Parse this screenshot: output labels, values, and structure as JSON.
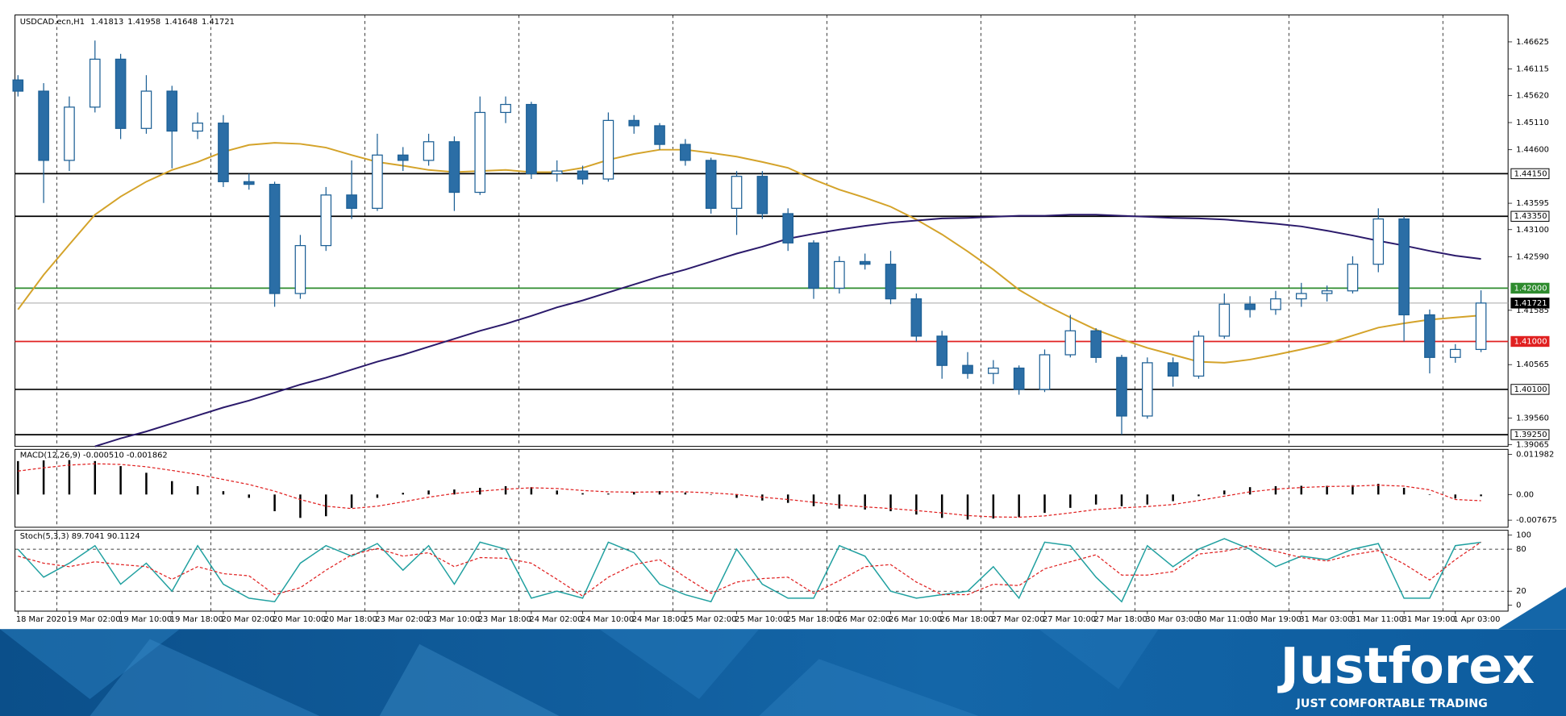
{
  "header": {
    "symbol": "USDCAD.ecn,H1",
    "quote": [
      1.41813,
      1.41958,
      1.41648,
      1.41721
    ]
  },
  "brand": {
    "name": "Justforex",
    "tagline": "JUST COMFORTABLE TRADING"
  },
  "chart_data": [
    {
      "type": "candlestick",
      "categories": [
        "18 Mar 2020",
        null,
        "19 Mar 02:00",
        null,
        "19 Mar 10:00",
        null,
        "19 Mar 18:00",
        null,
        "20 Mar 02:00",
        null,
        "20 Mar 10:00",
        null,
        "20 Mar 18:00",
        null,
        "23 Mar 02:00",
        null,
        "23 Mar 10:00",
        null,
        "23 Mar 18:00",
        null,
        "24 Mar 02:00",
        null,
        "24 Mar 10:00",
        null,
        "24 Mar 18:00",
        null,
        "25 Mar 02:00",
        null,
        "25 Mar 10:00",
        null,
        "25 Mar 18:00",
        null,
        "26 Mar 02:00",
        null,
        "26 Mar 10:00",
        null,
        "26 Mar 18:00",
        null,
        "27 Mar 02:00",
        null,
        "27 Mar 10:00",
        null,
        "27 Mar 18:00",
        null,
        "30 Mar 03:00",
        null,
        "30 Mar 11:00",
        null,
        "30 Mar 19:00",
        null,
        "31 Mar 03:00",
        null,
        "31 Mar 11:00",
        null,
        "31 Mar 19:00",
        null,
        "1 Apr 03:00",
        null
      ],
      "open": [
        1.4591,
        1.457,
        1.444,
        1.454,
        1.463,
        1.45,
        1.457,
        1.4495,
        1.451,
        1.44,
        1.4395,
        1.419,
        1.428,
        1.4375,
        1.435,
        1.445,
        1.444,
        1.4475,
        1.438,
        1.453,
        1.4545,
        1.4415,
        1.442,
        1.4405,
        1.4515,
        1.4505,
        1.447,
        1.444,
        1.435,
        1.441,
        1.434,
        1.4285,
        1.42,
        1.425,
        1.4245,
        1.418,
        1.411,
        1.4055,
        1.404,
        1.405,
        1.401,
        1.4075,
        1.412,
        1.407,
        1.396,
        1.406,
        1.4035,
        1.411,
        1.417,
        1.416,
        1.418,
        1.419,
        1.4195,
        1.4245,
        1.433,
        1.415,
        1.407,
        1.4085
      ],
      "high": [
        1.46,
        1.4585,
        1.456,
        1.4665,
        1.464,
        1.46,
        1.458,
        1.453,
        1.4525,
        1.4415,
        1.44,
        1.43,
        1.439,
        1.444,
        1.449,
        1.4465,
        1.449,
        1.4485,
        1.456,
        1.456,
        1.455,
        1.444,
        1.443,
        1.453,
        1.4525,
        1.451,
        1.448,
        1.4445,
        1.442,
        1.442,
        1.435,
        1.429,
        1.426,
        1.4265,
        1.427,
        1.419,
        1.412,
        1.408,
        1.4065,
        1.4055,
        1.4085,
        1.415,
        1.4125,
        1.4075,
        1.407,
        1.407,
        1.412,
        1.419,
        1.4185,
        1.4195,
        1.421,
        1.4205,
        1.426,
        1.435,
        1.4335,
        1.416,
        1.4095,
        1.4196
      ],
      "low": [
        1.456,
        1.436,
        1.442,
        1.453,
        1.448,
        1.449,
        1.4425,
        1.448,
        1.439,
        1.4385,
        1.4165,
        1.418,
        1.427,
        1.433,
        1.4345,
        1.442,
        1.443,
        1.4345,
        1.4375,
        1.451,
        1.4405,
        1.44,
        1.4395,
        1.44,
        1.449,
        1.446,
        1.443,
        1.434,
        1.43,
        1.433,
        1.427,
        1.418,
        1.419,
        1.4235,
        1.417,
        1.41,
        1.403,
        1.403,
        1.402,
        1.4,
        1.4005,
        1.407,
        1.406,
        1.3925,
        1.3955,
        1.4015,
        1.403,
        1.4105,
        1.4145,
        1.415,
        1.4165,
        1.4175,
        1.419,
        1.423,
        1.41,
        1.404,
        1.406,
        1.408
      ],
      "close": [
        1.457,
        1.444,
        1.454,
        1.463,
        1.45,
        1.457,
        1.4495,
        1.451,
        1.44,
        1.4395,
        1.419,
        1.428,
        1.4375,
        1.435,
        1.445,
        1.444,
        1.4475,
        1.438,
        1.453,
        1.4545,
        1.4415,
        1.442,
        1.4405,
        1.4515,
        1.4505,
        1.447,
        1.444,
        1.435,
        1.441,
        1.434,
        1.4285,
        1.42,
        1.425,
        1.4245,
        1.418,
        1.411,
        1.4055,
        1.404,
        1.405,
        1.401,
        1.4075,
        1.412,
        1.407,
        1.396,
        1.406,
        1.4035,
        1.411,
        1.417,
        1.416,
        1.418,
        1.419,
        1.4195,
        1.4245,
        1.433,
        1.415,
        1.407,
        1.4085,
        1.41721
      ],
      "up_color": "#ffffff",
      "down_color": "#2b6ea6",
      "edge_color": "#1c5f95",
      "lines": [
        {
          "color": "#d4a32a",
          "values": [
            1.416,
            1.4225,
            1.4282,
            1.4338,
            1.4372,
            1.44,
            1.4422,
            1.4437,
            1.4456,
            1.4469,
            1.4473,
            1.4471,
            1.4464,
            1.445,
            1.4437,
            1.443,
            1.4422,
            1.4418,
            1.442,
            1.4422,
            1.4418,
            1.4418,
            1.4426,
            1.4441,
            1.4452,
            1.446,
            1.446,
            1.4454,
            1.4447,
            1.4437,
            1.4426,
            1.4404,
            1.4385,
            1.437,
            1.4353,
            1.4329,
            1.4301,
            1.4269,
            1.4235,
            1.4197,
            1.4169,
            1.4145,
            1.4122,
            1.4104,
            1.4088,
            1.4075,
            1.4062,
            1.406,
            1.4066,
            1.4075,
            1.4085,
            1.4096,
            1.4111,
            1.4126,
            1.4134,
            1.4141,
            1.4145,
            1.4149
          ]
        },
        {
          "color": "#2b1a6b",
          "values": [
            null,
            null,
            null,
            1.3903,
            1.3918,
            1.3931,
            1.3946,
            1.3961,
            1.3976,
            1.3989,
            1.4004,
            1.4019,
            1.4032,
            1.4047,
            1.4062,
            1.4075,
            1.409,
            1.4105,
            1.412,
            1.4133,
            1.4148,
            1.4164,
            1.4177,
            1.4192,
            1.4207,
            1.4222,
            1.4235,
            1.425,
            1.4265,
            1.4278,
            1.4293,
            1.4302,
            1.431,
            1.4317,
            1.4323,
            1.4327,
            1.4331,
            1.4332,
            1.4334,
            1.4336,
            1.4336,
            1.4338,
            1.4338,
            1.4336,
            1.4334,
            1.4332,
            1.4331,
            1.4329,
            1.4325,
            1.4321,
            1.4316,
            1.4308,
            1.4299,
            1.4289,
            1.428,
            1.427,
            1.4261,
            1.4255
          ]
        }
      ],
      "ylim": [
        1.3903,
        1.4713
      ],
      "yticks": [
        {
          "value": 1.46625,
          "label": "1.46625"
        },
        {
          "value": 1.46115,
          "label": "1.46115"
        },
        {
          "value": 1.4562,
          "label": "1.45620"
        },
        {
          "value": 1.4511,
          "label": "1.45110"
        },
        {
          "value": 1.446,
          "label": "1.44600"
        },
        {
          "value": 1.43595,
          "label": "1.43595"
        },
        {
          "value": 1.431,
          "label": "1.43100"
        },
        {
          "value": 1.4259,
          "label": "1.42590"
        },
        {
          "value": 1.41585,
          "label": "1.41585"
        },
        {
          "value": 1.40565,
          "label": "1.40565"
        },
        {
          "value": 1.3956,
          "label": "1.39560"
        },
        {
          "value": 1.39065,
          "label": "1.39065"
        }
      ],
      "levels": [
        {
          "value": 1.4415,
          "label": "1.44150",
          "color": "#000000"
        },
        {
          "value": 1.4335,
          "label": "1.43350",
          "color": "#000000"
        },
        {
          "value": 1.42,
          "label": "1.42000",
          "color": "#2e8b2e"
        },
        {
          "value": 1.41,
          "label": "1.41000",
          "color": "#e02020"
        },
        {
          "value": 1.401,
          "label": "1.40100",
          "color": "#000000"
        },
        {
          "value": 1.3925,
          "label": "1.39250",
          "color": "#000000"
        }
      ],
      "current": {
        "value": 1.41721,
        "color": "#a8a8a8"
      }
    },
    {
      "type": "macd",
      "title": "MACD(12,26,9) -0.000510 -0.001862",
      "values": [
        0.01,
        0.0102,
        0.0103,
        0.01,
        0.0085,
        0.0065,
        0.004,
        0.0025,
        0.001,
        -0.001,
        -0.005,
        -0.007,
        -0.0065,
        -0.004,
        -0.001,
        0.0005,
        0.0012,
        0.0015,
        0.002,
        0.0025,
        0.0022,
        0.0012,
        0.0004,
        0.0003,
        0.0008,
        0.001,
        0.0006,
        0,
        -0.001,
        -0.0018,
        -0.0025,
        -0.0035,
        -0.0042,
        -0.0045,
        -0.005,
        -0.006,
        -0.007,
        -0.0075,
        -0.0072,
        -0.0068,
        -0.0055,
        -0.004,
        -0.003,
        -0.0035,
        -0.003,
        -0.002,
        -0.0005,
        0.0012,
        0.0022,
        0.0025,
        0.0026,
        0.0026,
        0.0028,
        0.0032,
        0.002,
        0,
        -0.0012,
        -0.00051
      ],
      "signal": [
        0.007,
        0.008,
        0.0088,
        0.0092,
        0.009,
        0.0083,
        0.0072,
        0.006,
        0.0045,
        0.003,
        0.001,
        -0.0015,
        -0.0035,
        -0.0042,
        -0.0035,
        -0.0022,
        -0.0008,
        0.0003,
        0.001,
        0.0016,
        0.002,
        0.0018,
        0.0012,
        0.0008,
        0.0007,
        0.0008,
        0.0008,
        0.0005,
        0,
        -0.0008,
        -0.0015,
        -0.0023,
        -0.0031,
        -0.0037,
        -0.0042,
        -0.0048,
        -0.0055,
        -0.0063,
        -0.0067,
        -0.0068,
        -0.0064,
        -0.0055,
        -0.0045,
        -0.004,
        -0.0036,
        -0.003,
        -0.0018,
        -0.0005,
        0.0008,
        0.0016,
        0.0021,
        0.0024,
        0.0025,
        0.0028,
        0.0025,
        0.0014,
        -0.0015,
        -0.001862
      ],
      "color": "#000000",
      "signal_color": "#e02020",
      "ylim": [
        -0.0098,
        0.0135
      ],
      "yticks": [
        0.011982,
        {
          "value": 0,
          "label": "0.00"
        },
        -0.007675
      ]
    },
    {
      "type": "stochastic",
      "title": "Stoch(5,3,3) 89.7041 90.1124",
      "main": [
        80,
        40,
        60,
        85,
        30,
        60,
        20,
        85,
        30,
        10,
        5,
        60,
        85,
        70,
        88,
        50,
        85,
        30,
        90,
        80,
        10,
        20,
        10,
        90,
        75,
        30,
        15,
        5,
        80,
        30,
        10,
        10,
        85,
        70,
        20,
        10,
        15,
        20,
        55,
        10,
        90,
        85,
        40,
        5,
        85,
        55,
        80,
        95,
        80,
        55,
        70,
        65,
        80,
        88,
        10,
        10,
        85,
        89.7041
      ],
      "signal": [
        70,
        60,
        55,
        62,
        58,
        55,
        37,
        55,
        45,
        42,
        15,
        25,
        50,
        72,
        81,
        70,
        75,
        55,
        68,
        67,
        60,
        37,
        13,
        40,
        58,
        65,
        40,
        17,
        33,
        38,
        40,
        17,
        35,
        55,
        58,
        33,
        15,
        15,
        30,
        28,
        52,
        62,
        72,
        43,
        43,
        48,
        73,
        77,
        85,
        77,
        68,
        63,
        72,
        78,
        59,
        36,
        65,
        90.1124
      ],
      "color": "#20a0a0",
      "signal_color": "#e02020",
      "ylim": [
        -8.5,
        107
      ],
      "yticks": [
        100,
        80,
        20,
        0
      ]
    }
  ]
}
